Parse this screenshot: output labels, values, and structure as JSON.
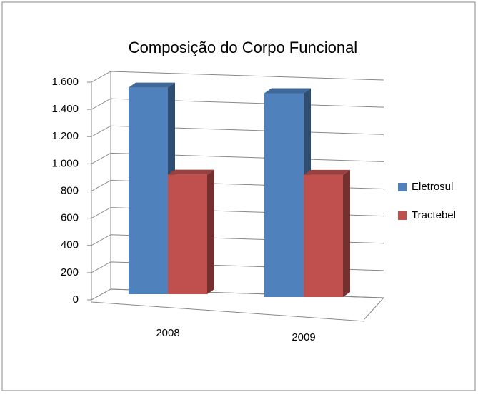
{
  "chart_data": {
    "type": "bar",
    "title": "Composição do Corpo Funcional",
    "categories": [
      "2008",
      "2009"
    ],
    "series": [
      {
        "name": "Eletrosul",
        "color": "#4f81bd",
        "values": [
          1560,
          1540
        ]
      },
      {
        "name": "Tractebel",
        "color": "#c0504d",
        "values": [
          920,
          940
        ]
      }
    ],
    "ylim": [
      0,
      1600
    ],
    "yticks": [
      0,
      200,
      400,
      600,
      800,
      {
        "value": 1000,
        "label": "1.000"
      },
      {
        "value": 1200,
        "label": "1.200"
      },
      {
        "value": 1400,
        "label": "1.400"
      },
      {
        "value": 1600,
        "label": "1.600"
      }
    ],
    "grid": true,
    "legend": "right",
    "three_d": true
  }
}
